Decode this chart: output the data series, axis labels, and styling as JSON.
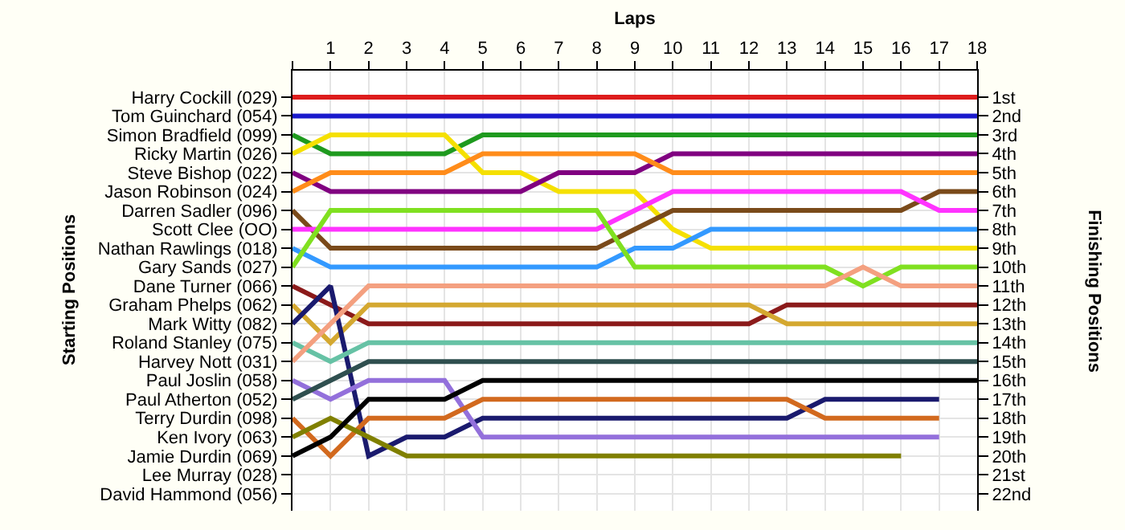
{
  "chart_data": {
    "type": "line",
    "xlabel": "Laps",
    "ylabel": "Finishing Positions",
    "annotations": [
      "Starting Positions"
    ],
    "x": [
      0,
      1,
      2,
      3,
      4,
      5,
      6,
      7,
      8,
      9,
      10,
      11,
      12,
      13,
      14,
      15,
      16,
      17,
      18
    ],
    "xlim": [
      0,
      18
    ],
    "xticks": [
      {
        "value": 0,
        "label": null
      },
      1,
      2,
      3,
      4,
      5,
      6,
      7,
      8,
      9,
      10,
      11,
      12,
      13,
      14,
      15,
      16,
      17,
      18
    ],
    "ylim": [
      22.9,
      -0.4
    ],
    "y2_categories": [
      "Harry Cockill (029)",
      "Tom Guinchard (054)",
      "Simon Bradfield (099)",
      "Ricky Martin (026)",
      "Steve Bishop (022)",
      "Jason Robinson (024)",
      "Darren Sadler (096)",
      "Scott Clee (OO)",
      "Nathan Rawlings (018)",
      "Gary Sands (027)",
      "Dane Turner (066)",
      "Graham Phelps (062)",
      "Mark Witty (082)",
      "Roland Stanley (075)",
      "Harvey Nott (031)",
      "Paul Joslin (058)",
      "Paul Atherton (052)",
      "Terry Durdin (098)",
      "Ken Ivory (063)",
      "Jamie Durdin (069)",
      "Lee Murray (028)",
      "David Hammond (056)"
    ],
    "yticks": [
      {
        "value": 1,
        "label": "1st"
      },
      {
        "value": 2,
        "label": "2nd"
      },
      {
        "value": 3,
        "label": "3rd"
      },
      {
        "value": 4,
        "label": "4th"
      },
      {
        "value": 5,
        "label": "5th"
      },
      {
        "value": 6,
        "label": "6th"
      },
      {
        "value": 7,
        "label": "7th"
      },
      {
        "value": 8,
        "label": "8th"
      },
      {
        "value": 9,
        "label": "9th"
      },
      {
        "value": 10,
        "label": "10th"
      },
      {
        "value": 11,
        "label": "11th"
      },
      {
        "value": 12,
        "label": "12th"
      },
      {
        "value": 13,
        "label": "13th"
      },
      {
        "value": 14,
        "label": "14th"
      },
      {
        "value": 15,
        "label": "15th"
      },
      {
        "value": 16,
        "label": "16th"
      },
      {
        "value": 17,
        "label": "17th"
      },
      {
        "value": 18,
        "label": "18th"
      },
      {
        "value": 19,
        "label": "19th"
      },
      {
        "value": 20,
        "label": "20th"
      },
      {
        "value": 21,
        "label": "21st"
      },
      {
        "value": 22,
        "label": "22nd"
      }
    ],
    "grid": true,
    "marker": "none",
    "line_style": "solid",
    "series": [
      {
        "color": "#dd1c1c",
        "values": [
          1,
          1,
          1,
          1,
          1,
          1,
          1,
          1,
          1,
          1,
          1,
          1,
          1,
          1,
          1,
          1,
          1,
          1,
          1
        ]
      },
      {
        "color": "#1a1acc",
        "values": [
          2,
          2,
          2,
          2,
          2,
          2,
          2,
          2,
          2,
          2,
          2,
          2,
          2,
          2,
          2,
          2,
          2,
          2,
          2
        ]
      },
      {
        "color": "#1e9a1e",
        "values": [
          3,
          4,
          4,
          4,
          4,
          3,
          3,
          3,
          3,
          3,
          3,
          3,
          3,
          3,
          3,
          3,
          3,
          3,
          3
        ]
      },
      {
        "color": "#f5e000",
        "values": [
          4,
          3,
          3,
          3,
          3,
          5,
          5,
          6,
          6,
          6,
          8,
          9,
          9,
          9,
          9,
          9,
          9,
          9,
          9
        ]
      },
      {
        "color": "#800080",
        "values": [
          5,
          6,
          6,
          6,
          6,
          6,
          6,
          5,
          5,
          5,
          4,
          4,
          4,
          4,
          4,
          4,
          4,
          4,
          4
        ]
      },
      {
        "color": "#ff8c1a",
        "values": [
          6,
          5,
          5,
          5,
          5,
          4,
          4,
          4,
          4,
          4,
          5,
          5,
          5,
          5,
          5,
          5,
          5,
          5,
          5
        ]
      },
      {
        "color": "#7a4a1a",
        "values": [
          7,
          9,
          9,
          9,
          9,
          9,
          9,
          9,
          9,
          8,
          7,
          7,
          7,
          7,
          7,
          7,
          7,
          6,
          6
        ]
      },
      {
        "color": "#ff33ff",
        "values": [
          8,
          8,
          8,
          8,
          8,
          8,
          8,
          8,
          8,
          7,
          6,
          6,
          6,
          6,
          6,
          6,
          6,
          7,
          7
        ]
      },
      {
        "color": "#3399ff",
        "values": [
          9,
          10,
          10,
          10,
          10,
          10,
          10,
          10,
          10,
          9,
          9,
          8,
          8,
          8,
          8,
          8,
          8,
          8,
          8
        ]
      },
      {
        "color": "#80e020",
        "values": [
          10,
          7,
          7,
          7,
          7,
          7,
          7,
          7,
          7,
          10,
          10,
          10,
          10,
          10,
          10,
          11,
          10,
          10,
          10
        ]
      },
      {
        "color": "#8b1a1a",
        "values": [
          11,
          12,
          13,
          13,
          13,
          13,
          13,
          13,
          13,
          13,
          13,
          13,
          13,
          12,
          12,
          12,
          12,
          12,
          12
        ]
      },
      {
        "color": "#d4a830",
        "values": [
          12,
          14,
          12,
          12,
          12,
          12,
          12,
          12,
          12,
          12,
          12,
          12,
          12,
          13,
          13,
          13,
          13,
          13,
          13
        ]
      },
      {
        "color": "#1a1a6e",
        "values": [
          13,
          11,
          20,
          19,
          19,
          18,
          18,
          18,
          18,
          18,
          18,
          18,
          18,
          18,
          17,
          17,
          17,
          17,
          null
        ]
      },
      {
        "color": "#66c2a5",
        "values": [
          14,
          15,
          14,
          14,
          14,
          14,
          14,
          14,
          14,
          14,
          14,
          14,
          14,
          14,
          14,
          14,
          14,
          14,
          14
        ]
      },
      {
        "color": "#f4a080",
        "values": [
          15,
          13,
          11,
          11,
          11,
          11,
          11,
          11,
          11,
          11,
          11,
          11,
          11,
          11,
          11,
          10,
          11,
          11,
          11
        ]
      },
      {
        "color": "#9370db",
        "values": [
          16,
          17,
          16,
          16,
          16,
          19,
          19,
          19,
          19,
          19,
          19,
          19,
          19,
          19,
          19,
          19,
          19,
          19,
          null
        ]
      },
      {
        "color": "#2f4f4f",
        "values": [
          17,
          16,
          15,
          15,
          15,
          15,
          15,
          15,
          15,
          15,
          15,
          15,
          15,
          15,
          15,
          15,
          15,
          15,
          15
        ]
      },
      {
        "color": "#d2691e",
        "values": [
          18,
          20,
          18,
          18,
          18,
          17,
          17,
          17,
          17,
          17,
          17,
          17,
          17,
          17,
          18,
          18,
          18,
          18,
          null
        ]
      },
      {
        "color": "#808000",
        "values": [
          19,
          18,
          19,
          20,
          20,
          20,
          20,
          20,
          20,
          20,
          20,
          20,
          20,
          20,
          20,
          20,
          20,
          null,
          null
        ]
      },
      {
        "color": "#000000",
        "values": [
          20,
          19,
          17,
          17,
          17,
          16,
          16,
          16,
          16,
          16,
          16,
          16,
          16,
          16,
          16,
          16,
          16,
          16,
          16
        ]
      }
    ]
  }
}
